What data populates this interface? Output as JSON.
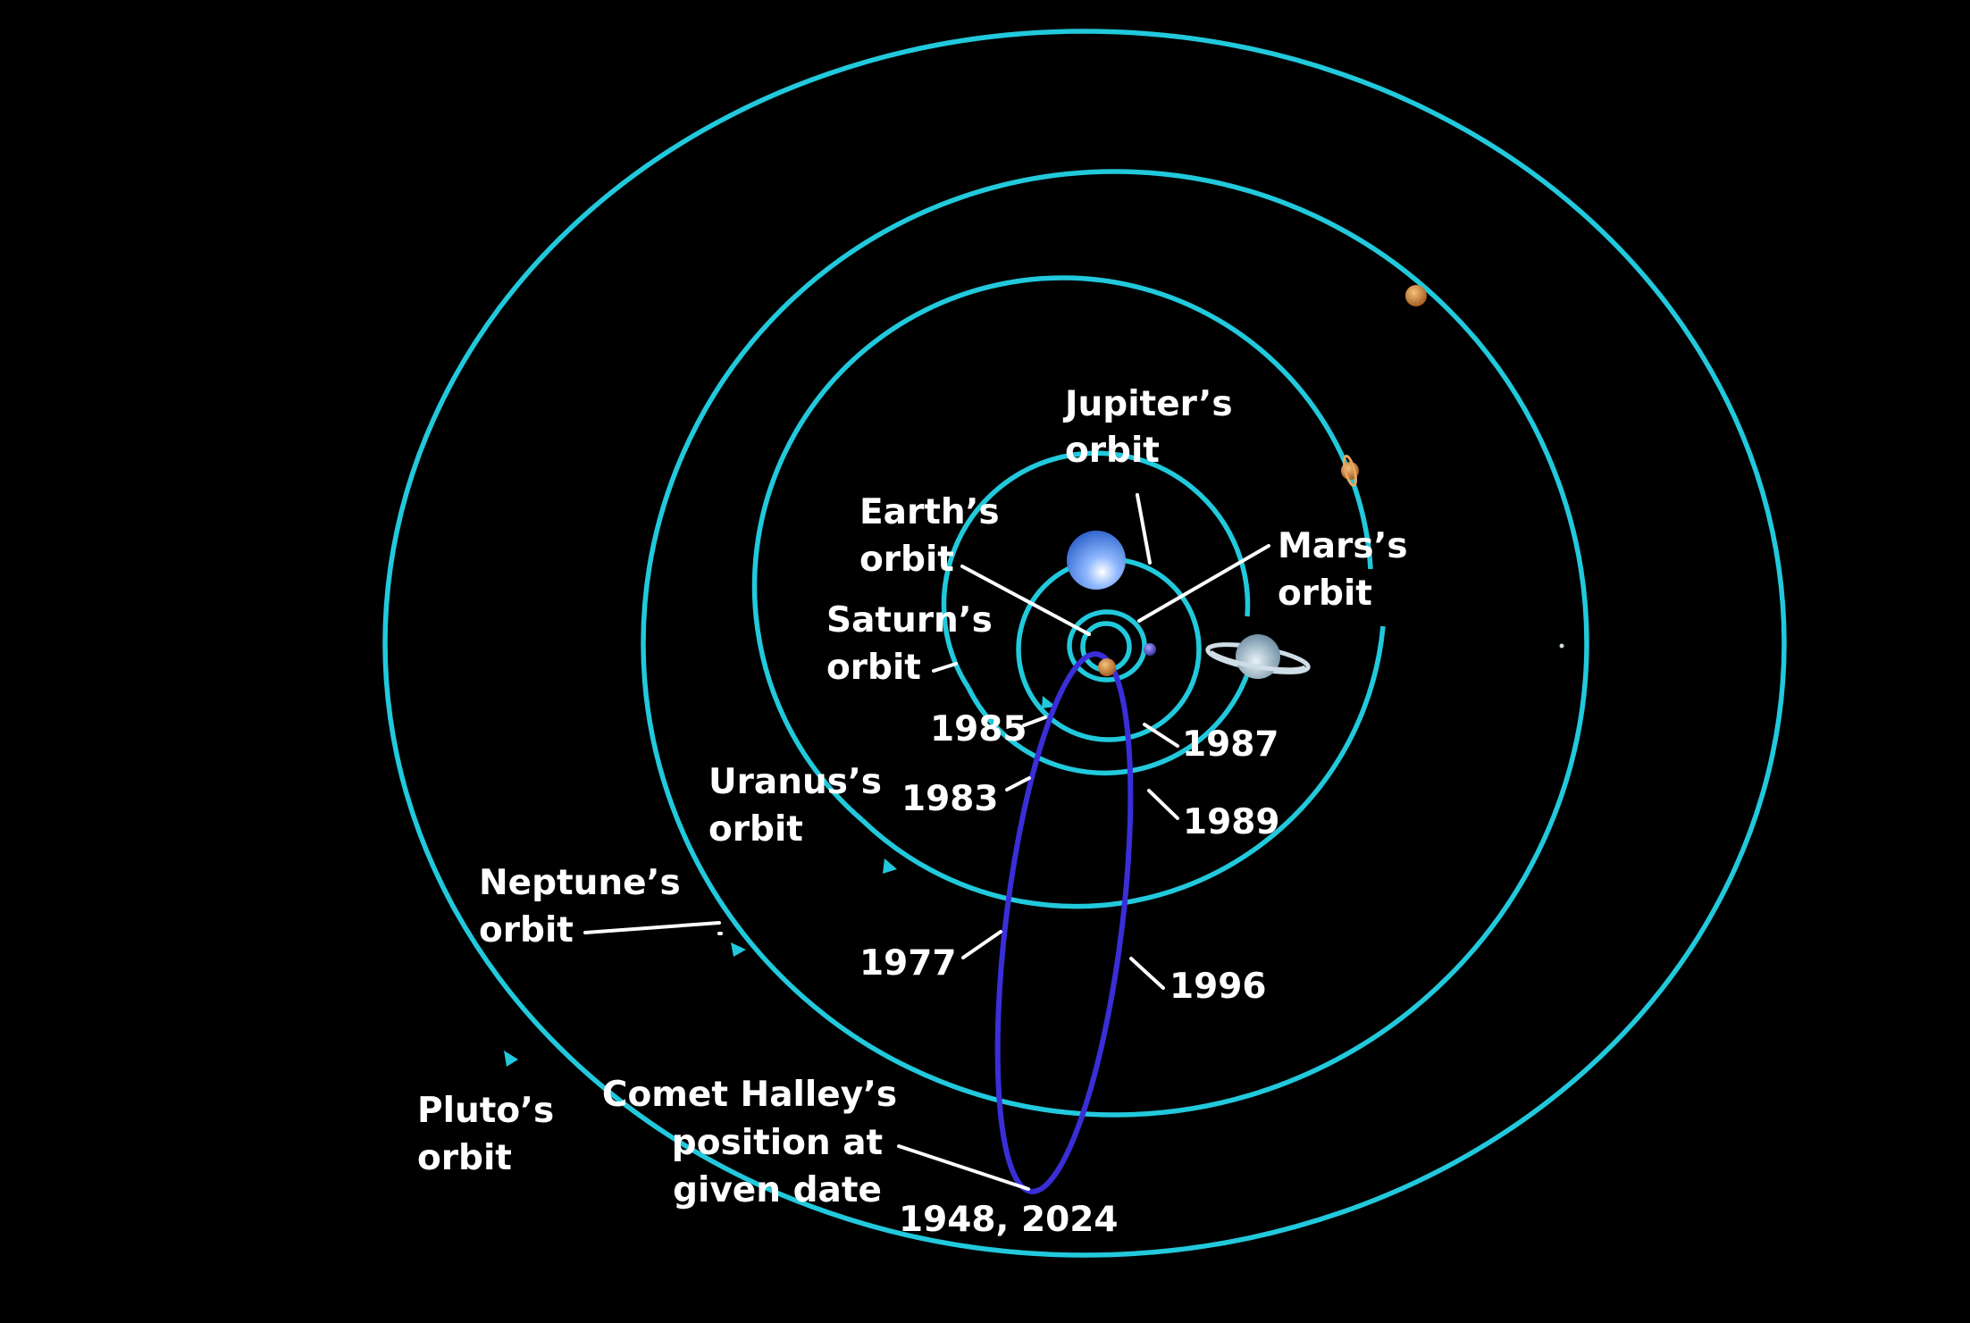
{
  "diagram": {
    "colors": {
      "background": "#000000",
      "orbit": "#22c9dc",
      "comet_orbit": "#3a2ed8",
      "label": "#ffffff"
    },
    "labels": {
      "jupiter": [
        "Jupiter’s",
        "orbit"
      ],
      "earth": [
        "Earth’s",
        "orbit"
      ],
      "mars": [
        "Mars’s",
        "orbit"
      ],
      "saturn": [
        "Saturn’s",
        "orbit"
      ],
      "uranus": [
        "Uranus’s",
        "orbit"
      ],
      "neptune": [
        "Neptune’s",
        "orbit"
      ],
      "pluto": [
        "Pluto’s",
        "orbit"
      ],
      "comet": [
        "Comet Halley’s",
        "position at",
        "given date"
      ]
    },
    "dates": {
      "d1985": "1985",
      "d1987": "1987",
      "d1983": "1983",
      "d1989": "1989",
      "d1977": "1977",
      "d1996": "1996",
      "d1948_2024": "1948, 2024"
    }
  }
}
